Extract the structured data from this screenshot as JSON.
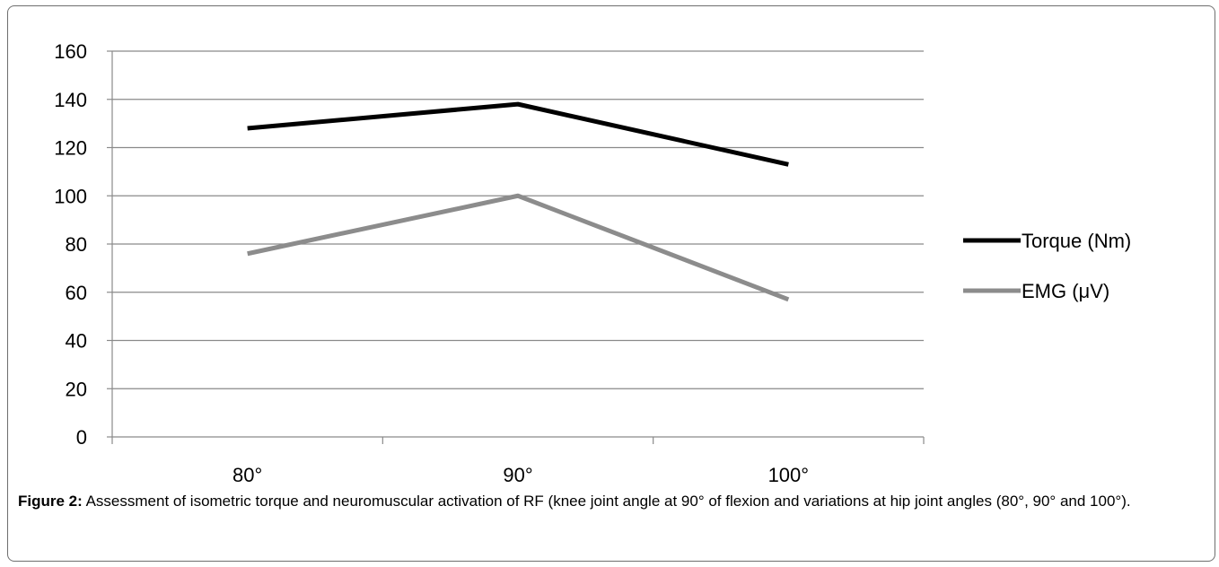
{
  "chart_data": {
    "type": "line",
    "categories": [
      "80°",
      "90°",
      "100°"
    ],
    "series": [
      {
        "name": "Torque (Nm)",
        "values": [
          128,
          138,
          113
        ],
        "color": "#000000"
      },
      {
        "name": "EMG (μV)",
        "values": [
          76,
          100,
          57
        ],
        "color": "#8c8c8c"
      }
    ],
    "ylim": [
      0,
      160
    ],
    "yticks": [
      0,
      20,
      40,
      60,
      80,
      100,
      120,
      140,
      160
    ],
    "grid": true,
    "legend": "right",
    "title": "",
    "xlabel": "",
    "ylabel": ""
  },
  "caption": {
    "label": "Figure 2:",
    "text": " Assessment of isometric torque and neuromuscular activation of RF (knee joint angle at 90° of flexion and variations at hip joint angles (80°, 90° and 100°)."
  }
}
